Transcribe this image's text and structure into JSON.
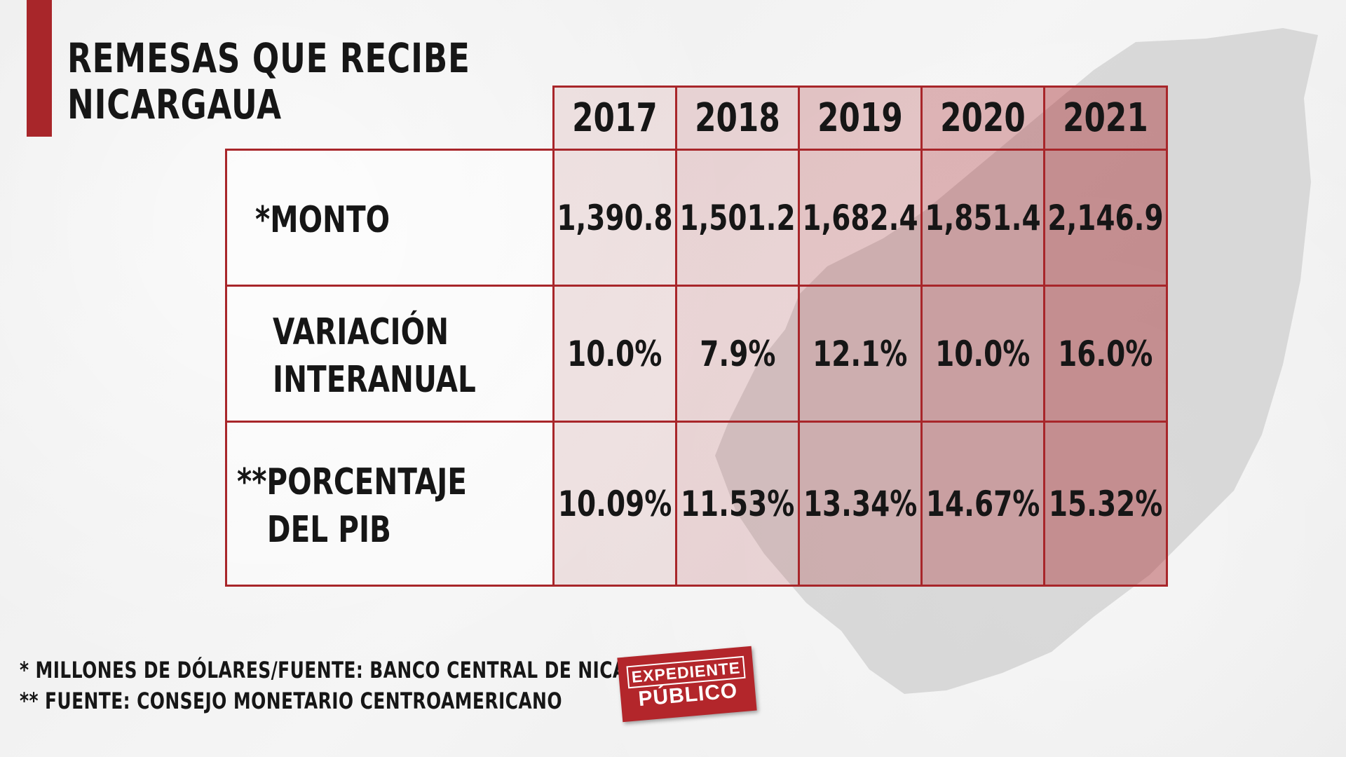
{
  "title": {
    "line1": "REMESAS QUE RECIBE",
    "line2": "NICARGAUA"
  },
  "chart_data": {
    "type": "table",
    "columns": [
      "2017",
      "2018",
      "2019",
      "2020",
      "2021"
    ],
    "rows": [
      {
        "label": [
          "*MONTO"
        ],
        "values": [
          "1,390.8",
          "1,501.2",
          "1,682.4",
          "1,851.4",
          "2,146.9"
        ]
      },
      {
        "label": [
          "VARIACIÓN",
          "INTERANUAL"
        ],
        "values": [
          "10.0%",
          "7.9%",
          "12.1%",
          "10.0%",
          "16.0%"
        ]
      },
      {
        "label": [
          "**PORCENTAJE",
          "DEL PIB"
        ],
        "values": [
          "10.09%",
          "11.53%",
          "13.34%",
          "14.67%",
          "15.32%"
        ]
      }
    ]
  },
  "footnotes": {
    "line1": "* MILLONES DE DÓLARES/FUENTE: BANCO CENTRAL DE NICARAGUA",
    "line2": "** FUENTE: CONSEJO MONETARIO CENTROAMERICANO"
  },
  "logo": {
    "line1": "EXPEDIENTE",
    "line2": "PÚBLICO"
  },
  "colors": {
    "accent": "#a8262a",
    "map": "#cfcfcf",
    "background": "#efefef"
  },
  "icons": {
    "logo": "expediente-publico-logo",
    "background_map": "nicaragua-map-silhouette"
  }
}
